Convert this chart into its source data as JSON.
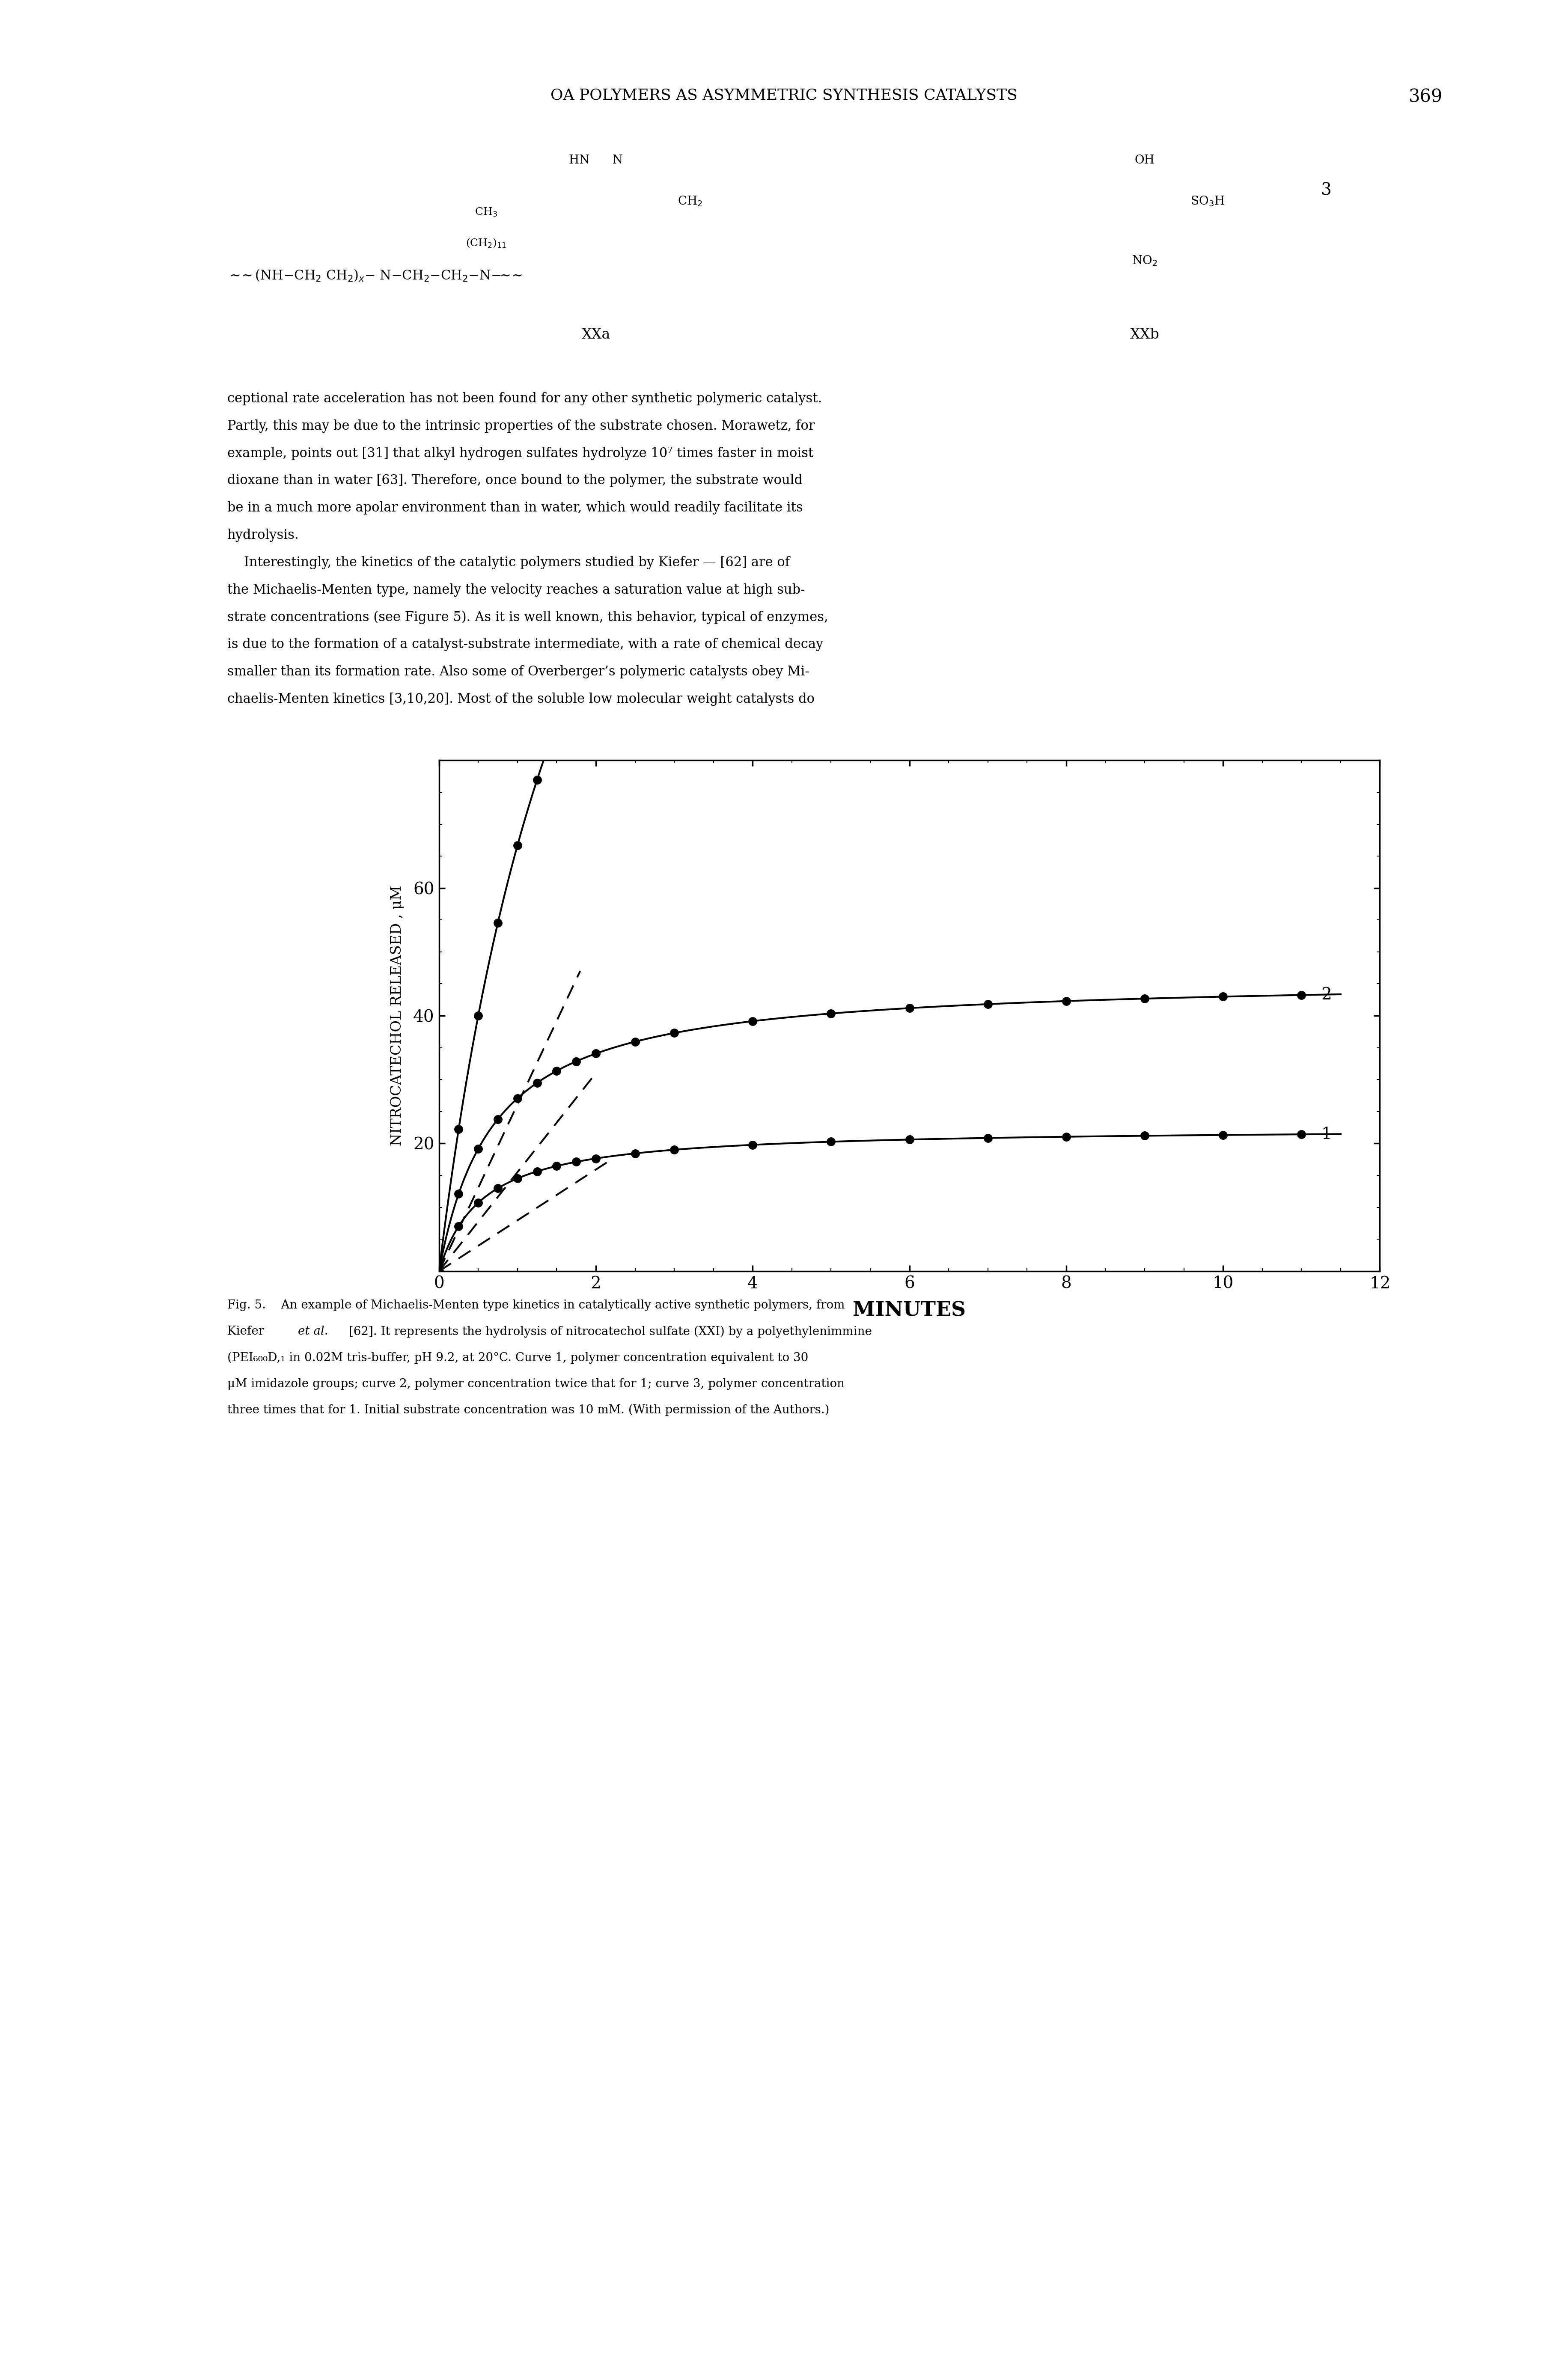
{
  "title": "OA POLYMERS AS ASYMMETRIC SYNTHESIS CATALYSTS",
  "page_number": "369",
  "ylabel": "NITROCATECHOL RELEASED , μM",
  "xlabel": "MINUTES",
  "xlim": [
    0,
    12
  ],
  "ylim": [
    0,
    80
  ],
  "xticks": [
    0,
    2,
    4,
    6,
    8,
    10,
    12
  ],
  "yticks": [
    20,
    40,
    60
  ],
  "vmax1": 22.5,
  "km1": 0.55,
  "vmax2": 46.0,
  "km2": 0.7,
  "vmax3": 200.0,
  "km3": 2.0,
  "dash1_x0": 0.0,
  "dash1_y0": 0.0,
  "dash1_x1": 2.2,
  "dash1_y1": 17.5,
  "dash2_x0": 0.0,
  "dash2_y0": 0.0,
  "dash2_x1": 2.0,
  "dash2_y1": 31.0,
  "dash3_x0": 0.0,
  "dash3_y0": 0.0,
  "dash3_x1": 1.8,
  "dash3_y1": 47.0,
  "dot_times_dense": [
    0,
    0.25,
    0.5,
    0.75,
    1.0,
    1.25,
    1.5,
    1.75,
    2.0,
    2.5
  ],
  "dot_times_sparse": [
    3.0,
    4.0,
    5.0,
    6.0,
    7.0,
    8.0,
    9.0,
    10.0,
    11.0
  ],
  "caption_line1": "Fig. 5.    An example of Michaelis-Menten type kinetics in catalytically active synthetic polymers, from",
  "caption_line2": "Kiefer ",
  "caption_line2_italic": "et al.",
  "caption_line2_rest": " [62]. It represents the hydrolysis of nitrocatechol sulfate (XXI) by a polyethylenimmine",
  "caption_line3": "(PEI₆₀₀D,₁ in 0.02Μ tris-buffer, pH 9.2, at 20°C. Curve 1, polymer concentration equivalent to 30",
  "caption_line4": "μM imidazole groups; curve 2, polymer concentration twice that for 1; curve 3, polymer concentration",
  "caption_line5": "three times that for 1. Initial substrate concentration was 10 mM. (With permission of the Authors.)",
  "background_color": "#ffffff",
  "line_color": "#000000",
  "text_color": "#000000"
}
